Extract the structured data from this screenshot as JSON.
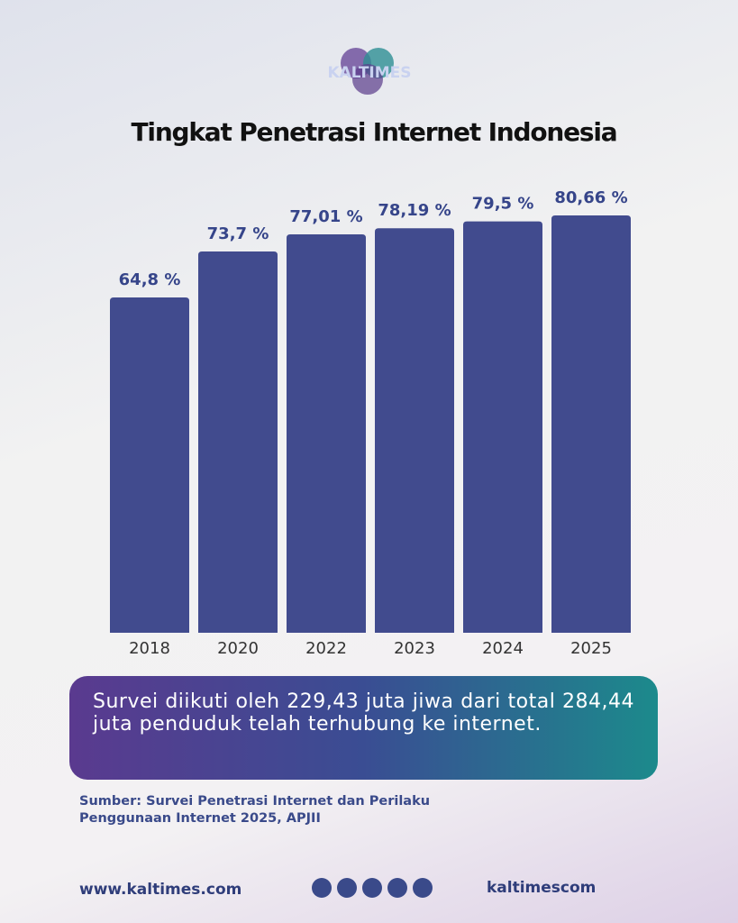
{
  "logo": "KALTIMES",
  "chart_data": {
    "type": "bar",
    "title": "Tingkat Penetrasi Internet Indonesia",
    "categories": [
      "2018",
      "2020",
      "2022",
      "2023",
      "2024",
      "2025"
    ],
    "values": [
      64.8,
      73.7,
      77.01,
      78.19,
      79.5,
      80.66
    ],
    "value_labels": [
      "64,8 %",
      "73,7 %",
      "77,01 %",
      "78,19 %",
      "79,5 %",
      "80,66 %"
    ],
    "color": "#414b8e",
    "ylim": [
      0,
      100
    ]
  },
  "description": "Survei diikuti oleh 229,43 juta jiwa dari total 284,44 juta penduduk telah terhubung ke internet.",
  "source": "Sumber: Survei Penetrasi Internet dan Perilaku Penggunaan Internet 2025, APJII",
  "footer": {
    "website": "www.kaltimes.com",
    "handle": "kaltimescom"
  }
}
